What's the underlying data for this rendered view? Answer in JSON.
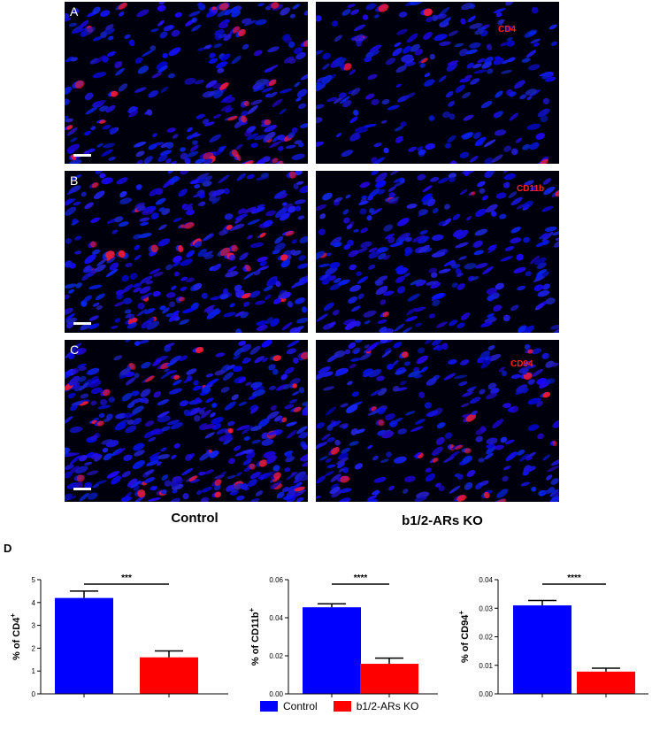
{
  "panels": {
    "rows": [
      {
        "letter": "A",
        "marker": "CD4"
      },
      {
        "letter": "B",
        "marker": "CD11b"
      },
      {
        "letter": "C",
        "marker": "CD94"
      }
    ],
    "columns": [
      "Control",
      "b1/2-ARs KO"
    ]
  },
  "colors": {
    "control": "#0000ff",
    "ko": "#ff0000",
    "nuclei": "#1a2bff",
    "stain": "#ff2030"
  },
  "section_d_label": "D",
  "chart_data": [
    {
      "type": "bar",
      "categories": [
        "Control",
        "b1/2-ARs KO"
      ],
      "values": [
        4.2,
        1.6
      ],
      "errors": [
        0.3,
        0.28
      ],
      "ylabel": "% of CD4",
      "ylabel_sup": "+",
      "ylim": [
        0,
        5
      ],
      "yticks": [
        "0",
        "1",
        "2",
        "3",
        "4",
        "5"
      ],
      "significance": "***"
    },
    {
      "type": "bar",
      "categories": [
        "Control",
        "b1/2-ARs KO"
      ],
      "values": [
        0.0455,
        0.0158
      ],
      "errors": [
        0.0018,
        0.003
      ],
      "ylabel": "% of CD11b",
      "ylabel_sup": "+",
      "ylim": [
        0,
        0.06
      ],
      "yticks": [
        "0.00",
        "0.02",
        "0.04",
        "0.06"
      ],
      "significance": "****"
    },
    {
      "type": "bar",
      "categories": [
        "Control",
        "b1/2-ARs KO"
      ],
      "values": [
        0.031,
        0.0078
      ],
      "errors": [
        0.0017,
        0.0012
      ],
      "ylabel": "% of CD94",
      "ylabel_sup": "+",
      "ylim": [
        0,
        0.04
      ],
      "yticks": [
        "0.00",
        "0.01",
        "0.02",
        "0.03",
        "0.04"
      ],
      "significance": "****"
    }
  ],
  "legend": [
    {
      "label": "Control",
      "color": "#0000ff"
    },
    {
      "label": "b1/2-ARs KO",
      "color": "#ff0000"
    }
  ]
}
